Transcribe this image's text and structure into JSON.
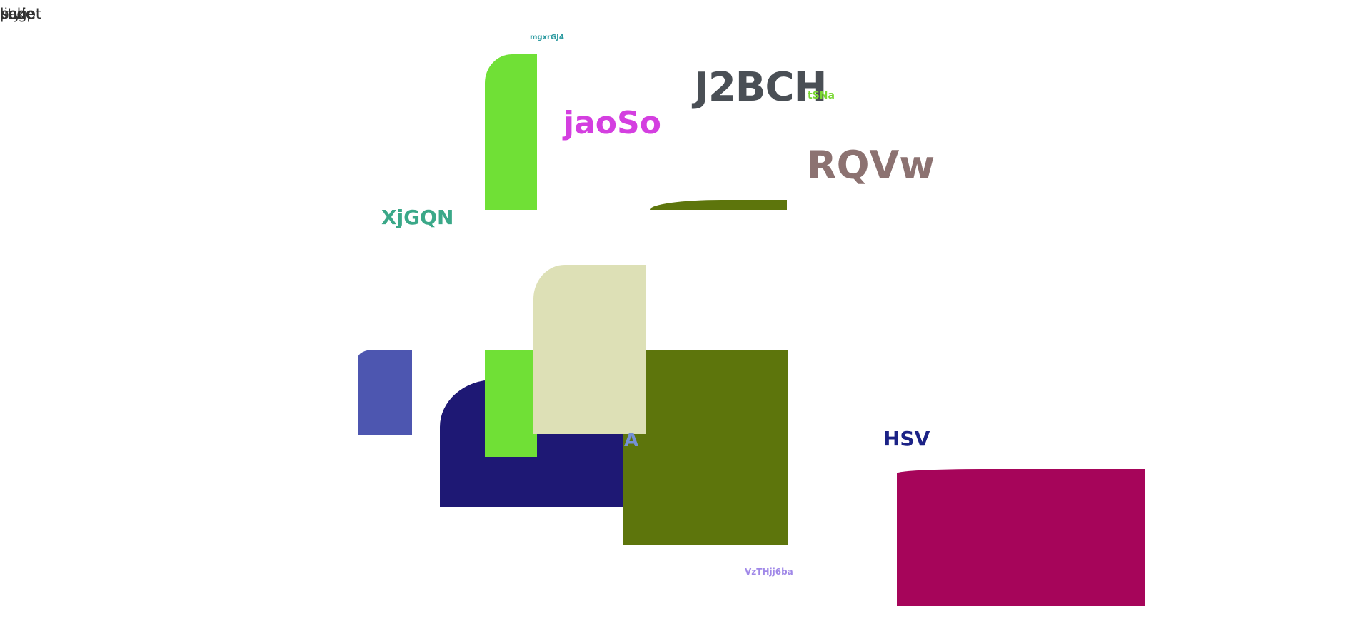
{
  "corner_texts": [
    "link",
    "page",
    "code",
    "style",
    "script"
  ],
  "labels": {
    "top_small": "mgxrGJ4",
    "j2bch": "J2BCH",
    "tsna": "tSNa",
    "jaoso": "jaoSo",
    "rqvw": "RQVw",
    "xjgqn": "XjGQN",
    "hsv": "HSV",
    "a": "A",
    "bottom_small": "VzTHjj6ba"
  },
  "colors": {
    "green_bright": "#70e036",
    "olive": "#5d750c",
    "navy": "#1e1874",
    "beige": "#dde0b6",
    "periwinkle": "#4d56b0",
    "magenta": "#a6055a",
    "gray_text": "#4a4f55",
    "mauve_text": "#8c7271",
    "pink_text": "#d43fe0",
    "teal_text": "#3aa888",
    "lime_text": "#7ad833",
    "blue_text": "#1b2286",
    "light_blue_text": "#7590d6",
    "lavender_text": "#a088e8",
    "teal_small": "#2c9aa0"
  }
}
